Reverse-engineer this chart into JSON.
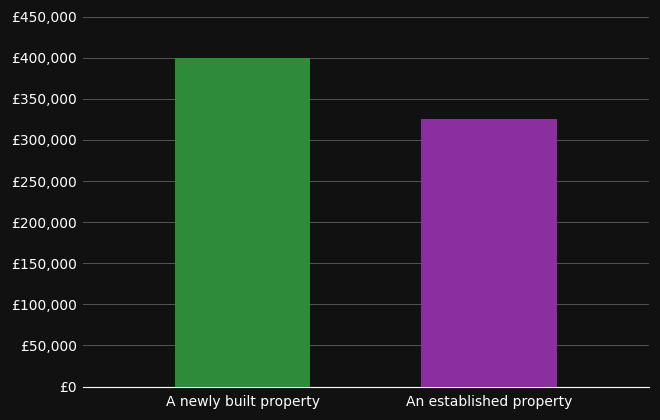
{
  "categories": [
    "A newly built property",
    "An established property"
  ],
  "values": [
    400000,
    325000
  ],
  "bar_colors": [
    "#2e8b3a",
    "#8b2fa0"
  ],
  "background_color": "#111111",
  "text_color": "#ffffff",
  "grid_color": "#555555",
  "ylim": [
    0,
    450000
  ],
  "ytick_step": 50000,
  "bar_width": 0.55,
  "figsize": [
    6.6,
    4.2
  ],
  "dpi": 100,
  "tick_labelsize": 10,
  "xlabel_fontsize": 10
}
